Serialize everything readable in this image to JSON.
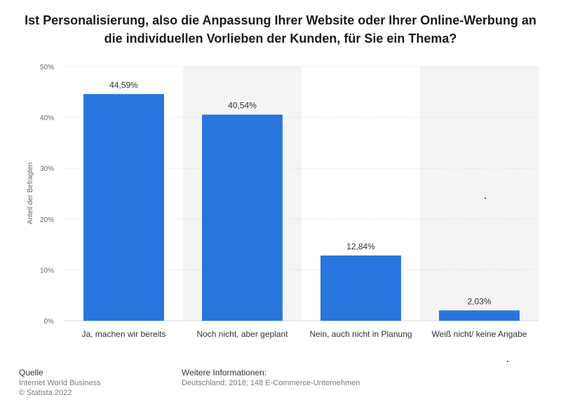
{
  "chart_data": {
    "type": "bar",
    "title": "Ist Personalisierung, also die Anpassung Ihrer Website oder Ihrer Online-Werbung an die individuellen Vorlieben der Kunden, für Sie ein Thema?",
    "ylabel": "Anteil der Befragten",
    "xlabel": "",
    "categories": [
      "Ja, machen wir bereits",
      "Noch nicht, aber geplant",
      "Nein, auch nicht in Planung",
      "Weiß nicht/ keine Angabe"
    ],
    "values": [
      44.59,
      40.54,
      12.84,
      2.03
    ],
    "value_labels": [
      "44,59%",
      "40,54%",
      "12,84%",
      "2,03%"
    ],
    "ylim": [
      0,
      50
    ],
    "yticks": [
      0,
      10,
      20,
      30,
      40,
      50
    ],
    "ytick_labels": [
      "0%",
      "10%",
      "20%",
      "30%",
      "40%",
      "50%"
    ],
    "grid": true,
    "bar_color": "#2876dd"
  },
  "footer": {
    "source_heading": "Quelle",
    "source_line1": "Internet World Business",
    "source_line2": "© Statista 2022",
    "info_heading": "Weitere Informationen:",
    "info_text": "Deutschland; 2018; 148 E-Commerce-Unternehmen"
  }
}
